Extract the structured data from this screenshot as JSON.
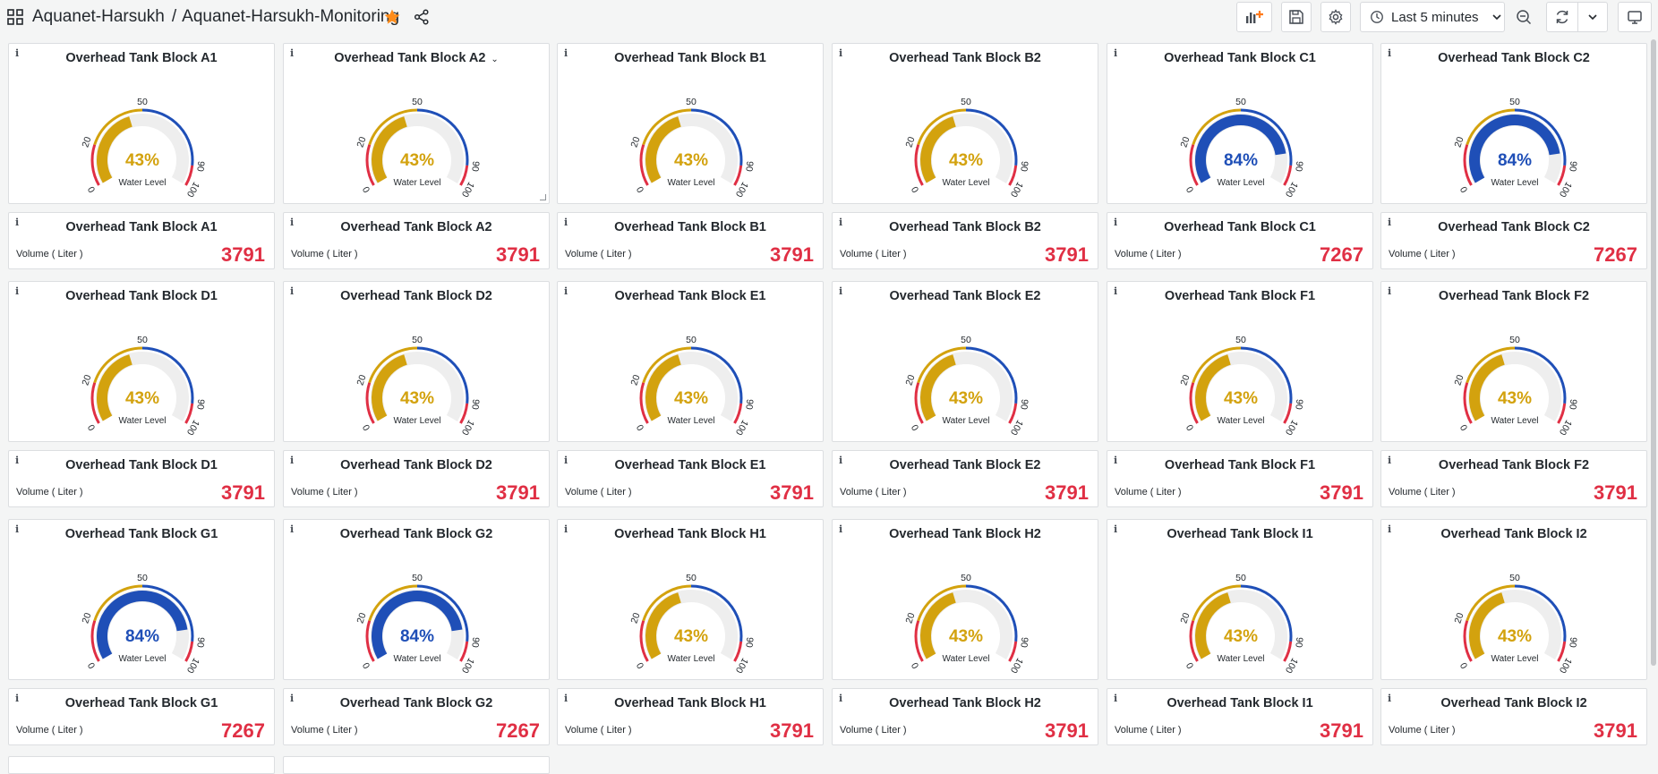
{
  "header": {
    "folder": "Aquanet-Harsukh",
    "separator": "/",
    "dashboard": "Aquanet-Harsukh-Monitoring",
    "time_range": "Last 5 minutes",
    "icons": {
      "apps": "apps-grid-icon",
      "star": "star-icon",
      "share": "share-icon",
      "add_panel": "add-panel-icon",
      "save": "save-icon",
      "settings": "gear-icon",
      "clock": "clock-icon",
      "chevron": "chevron-down-icon",
      "zoom_out": "zoom-out-icon",
      "refresh": "refresh-icon",
      "tv": "tv-mode-icon"
    }
  },
  "colors": {
    "yellow": "#d3a20e",
    "blue": "#1f4fb7",
    "red": "#e02f44",
    "track": "#eeeeee"
  },
  "gauge_common": {
    "label": "Water Level",
    "ticks": [
      "0",
      "20",
      "50",
      "90",
      "100"
    ],
    "min": 0,
    "max": 100,
    "thresholds": [
      0,
      20,
      50,
      90,
      100
    ]
  },
  "stat_common": {
    "label": "Volume ( Liter )"
  },
  "rows": [
    [
      {
        "title": "Overhead Tank Block A1",
        "level": 43,
        "level_text": "43%",
        "volume": "3791"
      },
      {
        "title": "Overhead Tank Block A2",
        "level": 43,
        "level_text": "43%",
        "volume": "3791",
        "menu": true
      },
      {
        "title": "Overhead Tank Block B1",
        "level": 43,
        "level_text": "43%",
        "volume": "3791"
      },
      {
        "title": "Overhead Tank Block B2",
        "level": 43,
        "level_text": "43%",
        "volume": "3791"
      },
      {
        "title": "Overhead Tank Block C1",
        "level": 84,
        "level_text": "84%",
        "volume": "7267"
      },
      {
        "title": "Overhead Tank Block C2",
        "level": 84,
        "level_text": "84%",
        "volume": "7267"
      }
    ],
    [
      {
        "title": "Overhead Tank Block D1",
        "level": 43,
        "level_text": "43%",
        "volume": "3791"
      },
      {
        "title": "Overhead Tank Block D2",
        "level": 43,
        "level_text": "43%",
        "volume": "3791"
      },
      {
        "title": "Overhead Tank Block E1",
        "level": 43,
        "level_text": "43%",
        "volume": "3791"
      },
      {
        "title": "Overhead Tank Block E2",
        "level": 43,
        "level_text": "43%",
        "volume": "3791"
      },
      {
        "title": "Overhead Tank Block F1",
        "level": 43,
        "level_text": "43%",
        "volume": "3791"
      },
      {
        "title": "Overhead Tank Block F2",
        "level": 43,
        "level_text": "43%",
        "volume": "3791"
      }
    ],
    [
      {
        "title": "Overhead Tank Block G1",
        "level": 84,
        "level_text": "84%",
        "volume": "7267"
      },
      {
        "title": "Overhead Tank Block G2",
        "level": 84,
        "level_text": "84%",
        "volume": "7267"
      },
      {
        "title": "Overhead Tank Block H1",
        "level": 43,
        "level_text": "43%",
        "volume": "3791"
      },
      {
        "title": "Overhead Tank Block H2",
        "level": 43,
        "level_text": "43%",
        "volume": "3791"
      },
      {
        "title": "Overhead Tank Block I1",
        "level": 43,
        "level_text": "43%",
        "volume": "3791"
      },
      {
        "title": "Overhead Tank Block I2",
        "level": 43,
        "level_text": "43%",
        "volume": "3791"
      }
    ]
  ]
}
